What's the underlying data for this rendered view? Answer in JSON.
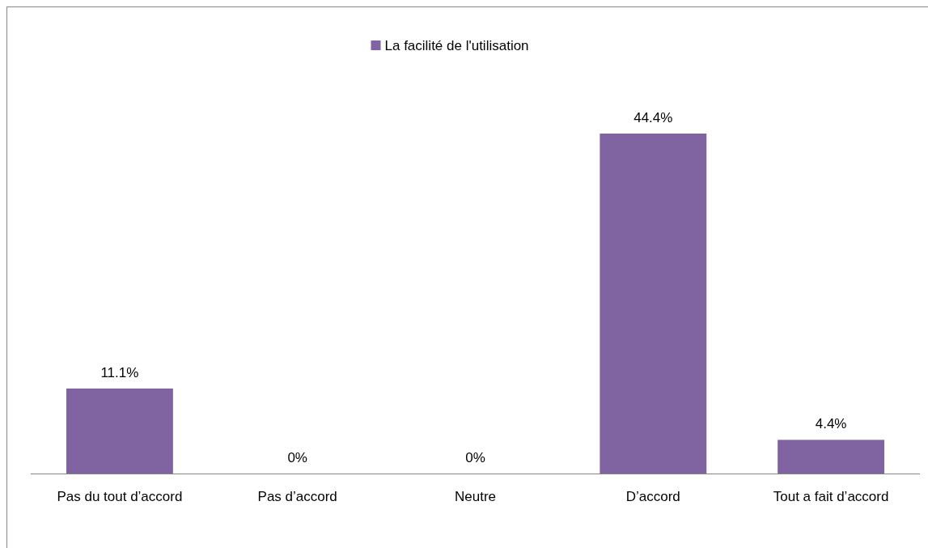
{
  "chart_data": {
    "type": "bar",
    "categories": [
      "Pas du tout d’accord",
      "Pas d’accord",
      "Neutre",
      "D’accord",
      "Tout a fait d’accord"
    ],
    "series": [
      {
        "name": "La facilité de l'utilisation",
        "color": "#8064a2",
        "values": [
          11.1,
          0,
          0,
          44.4,
          4.4
        ],
        "value_labels": [
          "11.1%",
          "0%",
          "0%",
          "44.4%",
          "4.4%"
        ]
      }
    ],
    "legend": "top"
  }
}
